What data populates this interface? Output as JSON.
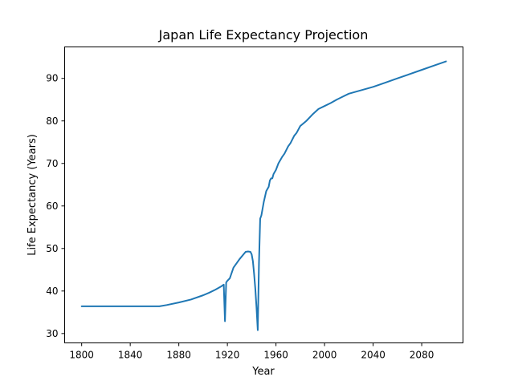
{
  "chart_data": {
    "type": "line",
    "title": "Japan Life Expectancy Projection",
    "xlabel": "Year",
    "ylabel": "Life Expectancy (Years)",
    "xlim": [
      1786,
      2114
    ],
    "ylim": [
      27.8,
      97.4
    ],
    "xticks": [
      1800,
      1840,
      1880,
      1920,
      1960,
      2000,
      2040,
      2080
    ],
    "yticks": [
      30,
      40,
      50,
      60,
      70,
      80,
      90
    ],
    "grid": false,
    "legend": "none",
    "series": [
      {
        "color": "#1f77b4",
        "x": [
          1800,
          1810,
          1820,
          1830,
          1840,
          1850,
          1860,
          1864,
          1870,
          1880,
          1890,
          1900,
          1905,
          1910,
          1915,
          1917,
          1918,
          1919,
          1920,
          1922,
          1925,
          1930,
          1935,
          1937,
          1939,
          1940,
          1941,
          1942,
          1943,
          1944,
          1945,
          1946,
          1947,
          1948,
          1950,
          1952,
          1954,
          1955,
          1956,
          1957,
          1958,
          1960,
          1962,
          1964,
          1965,
          1967,
          1970,
          1972,
          1975,
          1977,
          1980,
          1985,
          1990,
          1995,
          2000,
          2005,
          2010,
          2015,
          2020,
          2030,
          2040,
          2050,
          2060,
          2070,
          2080,
          2090,
          2100
        ],
        "y": [
          36.4,
          36.4,
          36.4,
          36.4,
          36.4,
          36.4,
          36.4,
          36.4,
          36.7,
          37.3,
          38.0,
          39.0,
          39.6,
          40.3,
          41.1,
          41.5,
          32.9,
          42.0,
          42.4,
          43.0,
          45.5,
          47.5,
          49.2,
          49.3,
          49.2,
          48.6,
          47.0,
          44.0,
          40.5,
          36.0,
          30.8,
          46.5,
          57.0,
          57.8,
          61.0,
          63.5,
          64.5,
          66.0,
          66.5,
          66.5,
          67.5,
          68.5,
          70.0,
          71.0,
          71.5,
          72.3,
          74.0,
          74.8,
          76.5,
          77.2,
          78.8,
          80.0,
          81.5,
          82.8,
          83.5,
          84.2,
          85.0,
          85.7,
          86.4,
          87.2,
          88.0,
          89.0,
          90.0,
          91.0,
          92.0,
          93.0,
          94.0
        ]
      }
    ]
  }
}
